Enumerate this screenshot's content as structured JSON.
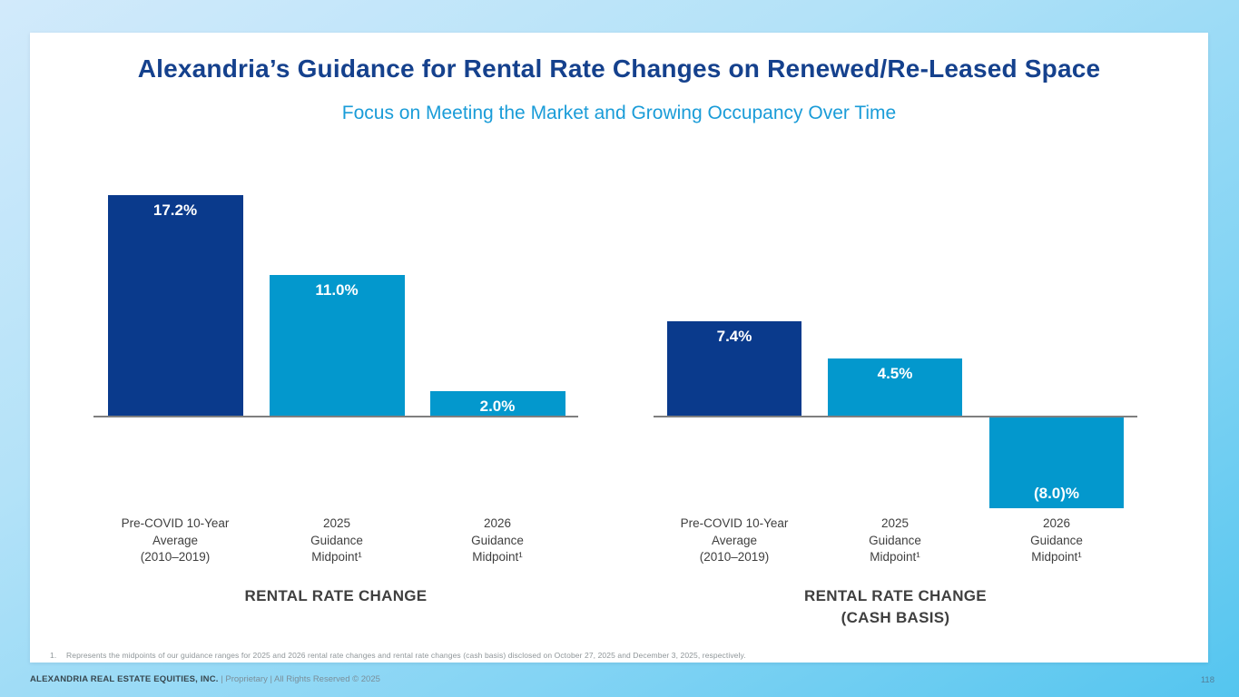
{
  "slide": {
    "title": "Alexandria’s Guidance for Rental Rate Changes on Renewed/Re-Leased Space",
    "subtitle": "Focus on Meeting the Market and Growing Occupancy Over Time"
  },
  "chart_data": [
    {
      "type": "bar",
      "title": "RENTAL RATE CHANGE",
      "title_lines": [
        "RENTAL RATE CHANGE"
      ],
      "categories": [
        "Pre-COVID 10-Year Average (2010–2019)",
        "2025 Guidance Midpoint¹",
        "2026 Guidance Midpoint¹"
      ],
      "category_lines": [
        [
          "Pre-COVID 10-Year",
          "Average",
          "(2010–2019)"
        ],
        [
          "2025",
          "Guidance",
          "Midpoint¹"
        ],
        [
          "2026",
          "Guidance",
          "Midpoint¹"
        ]
      ],
      "values": [
        17.2,
        11.0,
        2.0
      ],
      "value_labels": [
        "17.2%",
        "11.0%",
        "2.0%"
      ],
      "bar_colors": [
        "#0a3a8c",
        "#0398cd",
        "#0398cd"
      ],
      "ylim": [
        0,
        18
      ],
      "baseline": 0,
      "grid": false,
      "legend": false,
      "axis_color": "#7f7f7f",
      "xlabel": "",
      "ylabel": ""
    },
    {
      "type": "bar",
      "title": "RENTAL RATE CHANGE (CASH BASIS)",
      "title_lines": [
        "RENTAL RATE CHANGE",
        "(CASH BASIS)"
      ],
      "categories": [
        "Pre-COVID 10-Year Average (2010–2019)",
        "2025 Guidance Midpoint¹",
        "2026 Guidance Midpoint¹"
      ],
      "category_lines": [
        [
          "Pre-COVID 10-Year",
          "Average",
          "(2010–2019)"
        ],
        [
          "2025",
          "Guidance",
          "Midpoint¹"
        ],
        [
          "2026",
          "Guidance",
          "Midpoint¹"
        ]
      ],
      "values": [
        7.4,
        4.5,
        -8.0
      ],
      "value_labels": [
        "7.4%",
        "4.5%",
        "(8.0)%"
      ],
      "bar_colors": [
        "#0a3a8c",
        "#0398cd",
        "#0398cd"
      ],
      "ylim": [
        -10,
        10
      ],
      "baseline": 0,
      "grid": false,
      "legend": false,
      "axis_color": "#7f7f7f",
      "xlabel": "",
      "ylabel": ""
    }
  ],
  "footnote": {
    "number": "1.",
    "text": "Represents the midpoints of our guidance ranges for 2025 and 2026 rental rate changes and rental rate changes (cash basis) disclosed on October 27, 2025 and December 3, 2025, respectively."
  },
  "footer": {
    "company": "ALEXANDRIA REAL ESTATE EQUITIES, INC.",
    "rights": " | Proprietary | All Rights Reserved © 2025",
    "page_number": "118"
  },
  "colors": {
    "title_navy": "#15418d",
    "subtitle_teal": "#1a9cd8",
    "bar_navy": "#0a3a8c",
    "bar_blue": "#0398cd",
    "axis_gray": "#7f7f7f",
    "background_blue": "#54c5ef"
  }
}
